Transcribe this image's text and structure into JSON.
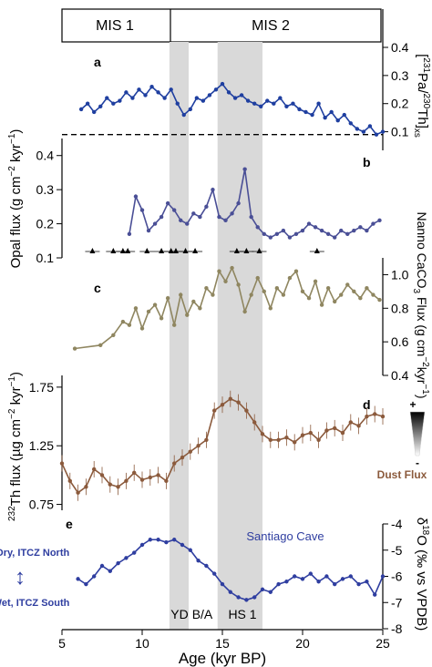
{
  "mis_bar": {
    "left_label": "MIS 1",
    "right_label": "MIS 2"
  },
  "shaded_bands": [
    {
      "name": "YD",
      "from": 11.7,
      "to": 12.9
    },
    {
      "name": "HS 1",
      "from": 14.7,
      "to": 17.5
    }
  ],
  "event_labels": [
    "YD",
    "B/A",
    "HS 1"
  ],
  "x_axis": {
    "label": "Age (kyr BP)",
    "range": [
      5,
      25
    ],
    "ticks": [
      "5",
      "10",
      "15",
      "20",
      "25"
    ]
  },
  "chart_data": [
    {
      "panel": "a",
      "type": "line",
      "color": "#1f3fa0",
      "ylabel": "[231Pa/230Th]xs",
      "ylim": [
        0.05,
        0.4
      ],
      "yticks": [
        "0.1",
        "0.2",
        "0.3",
        "0.4"
      ],
      "reference_line": 0.09,
      "x": [
        6.2,
        6.6,
        7.0,
        7.4,
        7.8,
        8.2,
        8.6,
        9.0,
        9.4,
        9.8,
        10.2,
        10.6,
        11.0,
        11.4,
        11.8,
        12.2,
        12.6,
        13.0,
        13.4,
        13.8,
        14.2,
        14.6,
        15.0,
        15.4,
        15.8,
        16.2,
        16.6,
        17.0,
        17.4,
        17.8,
        18.2,
        18.6,
        19.0,
        19.4,
        19.8,
        20.2,
        20.6,
        21.0,
        21.4,
        21.8,
        22.2,
        22.6,
        23.0,
        23.4,
        23.8,
        24.2,
        24.6,
        25.0
      ],
      "y": [
        0.18,
        0.2,
        0.17,
        0.19,
        0.22,
        0.2,
        0.21,
        0.24,
        0.22,
        0.25,
        0.23,
        0.26,
        0.24,
        0.22,
        0.25,
        0.2,
        0.16,
        0.18,
        0.22,
        0.21,
        0.23,
        0.25,
        0.27,
        0.24,
        0.22,
        0.23,
        0.21,
        0.2,
        0.19,
        0.21,
        0.2,
        0.22,
        0.19,
        0.2,
        0.18,
        0.17,
        0.16,
        0.2,
        0.15,
        0.17,
        0.14,
        0.16,
        0.13,
        0.11,
        0.1,
        0.12,
        0.09,
        0.1
      ]
    },
    {
      "panel": "b",
      "type": "line",
      "color": "#4a4f96",
      "ylabel": "Opal flux (g cm⁻² kyr⁻¹)",
      "ylim": [
        0.1,
        0.45
      ],
      "yticks": [
        "0.1",
        "0.2",
        "0.3",
        "0.4"
      ],
      "x": [
        9.2,
        9.6,
        10.0,
        10.4,
        10.8,
        11.2,
        11.6,
        12.0,
        12.4,
        12.8,
        13.2,
        13.6,
        14.0,
        14.4,
        14.8,
        15.2,
        15.6,
        16.0,
        16.4,
        16.8,
        17.2,
        17.6,
        18.0,
        18.4,
        18.8,
        19.2,
        19.6,
        20.0,
        20.4,
        20.8,
        21.2,
        21.6,
        22.0,
        22.4,
        22.8,
        23.2,
        23.6,
        24.0,
        24.4,
        24.8
      ],
      "y": [
        0.17,
        0.28,
        0.24,
        0.18,
        0.2,
        0.22,
        0.26,
        0.24,
        0.21,
        0.2,
        0.23,
        0.22,
        0.25,
        0.3,
        0.22,
        0.21,
        0.23,
        0.26,
        0.36,
        0.22,
        0.19,
        0.17,
        0.16,
        0.17,
        0.18,
        0.16,
        0.17,
        0.18,
        0.2,
        0.19,
        0.18,
        0.17,
        0.16,
        0.18,
        0.17,
        0.18,
        0.19,
        0.18,
        0.2,
        0.21
      ]
    },
    {
      "panel": "c",
      "type": "line",
      "color": "#8f8660",
      "ylabel": "Nanno CaCO3 Flux (g cm⁻² kyr⁻¹)",
      "ylim": [
        0.4,
        1.1
      ],
      "yticks": [
        "0.4",
        "0.6",
        "0.8",
        "1.0"
      ],
      "x": [
        5.8,
        7.4,
        8.2,
        8.8,
        9.2,
        9.6,
        10.0,
        10.4,
        10.8,
        11.2,
        11.6,
        12.0,
        12.4,
        12.8,
        13.2,
        13.6,
        14.0,
        14.4,
        14.8,
        15.2,
        15.6,
        16.0,
        16.4,
        16.8,
        17.2,
        17.6,
        18.0,
        18.4,
        18.8,
        19.2,
        19.6,
        20.0,
        20.4,
        20.8,
        21.2,
        21.6,
        22.0,
        22.4,
        22.8,
        23.2,
        23.6,
        24.0,
        24.4,
        24.8
      ],
      "y": [
        0.56,
        0.58,
        0.64,
        0.72,
        0.7,
        0.8,
        0.68,
        0.78,
        0.82,
        0.74,
        0.86,
        0.7,
        0.88,
        0.76,
        0.84,
        0.8,
        0.92,
        0.88,
        1.02,
        0.96,
        1.04,
        0.94,
        0.78,
        0.88,
        0.98,
        0.9,
        0.8,
        0.92,
        0.88,
        0.98,
        1.02,
        0.9,
        0.86,
        0.96,
        0.82,
        0.92,
        0.84,
        0.88,
        0.94,
        0.9,
        0.86,
        0.92,
        0.88,
        0.85
      ]
    },
    {
      "panel": "d",
      "type": "line",
      "color": "#8b5a3c",
      "ylabel": "232Th flux (µg cm⁻² kyr⁻¹)",
      "ylim": [
        0.7,
        1.85
      ],
      "yticks": [
        "0.75",
        "1.25",
        "1.75"
      ],
      "annotation": "Dust Flux",
      "x": [
        5.0,
        5.5,
        6.0,
        6.5,
        7.0,
        7.5,
        8.0,
        8.5,
        9.0,
        9.5,
        10.0,
        10.5,
        11.0,
        11.5,
        12.0,
        12.5,
        13.0,
        13.5,
        14.0,
        14.5,
        15.0,
        15.5,
        16.0,
        16.5,
        17.0,
        17.5,
        18.0,
        18.5,
        19.0,
        19.5,
        20.0,
        20.5,
        21.0,
        21.5,
        22.0,
        22.5,
        23.0,
        23.5,
        24.0,
        24.5,
        25.0
      ],
      "y": [
        1.1,
        0.95,
        0.85,
        0.9,
        1.05,
        1.0,
        0.92,
        0.9,
        0.95,
        1.02,
        0.96,
        0.98,
        1.0,
        0.95,
        1.1,
        1.15,
        1.2,
        1.25,
        1.3,
        1.55,
        1.6,
        1.65,
        1.62,
        1.55,
        1.45,
        1.35,
        1.3,
        1.3,
        1.32,
        1.28,
        1.34,
        1.36,
        1.3,
        1.38,
        1.4,
        1.36,
        1.45,
        1.42,
        1.5,
        1.52,
        1.5
      ]
    },
    {
      "panel": "e",
      "type": "line",
      "color": "#2f3ea0",
      "ylabel": "δ18O (‰ vs VPDB)",
      "ylim": [
        -8,
        -4
      ],
      "yticks": [
        "-4",
        "-5",
        "-6",
        "-7",
        "-8"
      ],
      "series_label": "Santiago Cave",
      "left_top_label": "Dry, ITCZ North",
      "left_bottom_label": "Wet, ITCZ South",
      "x": [
        6.0,
        6.5,
        7.0,
        7.5,
        8.0,
        8.5,
        9.0,
        9.5,
        10.0,
        10.5,
        11.0,
        11.5,
        12.0,
        12.5,
        13.0,
        13.5,
        14.0,
        14.5,
        15.0,
        15.5,
        16.0,
        16.5,
        17.0,
        17.5,
        18.0,
        18.5,
        19.0,
        19.5,
        20.0,
        20.5,
        21.0,
        21.5,
        22.0,
        22.5,
        23.0,
        23.5,
        24.0,
        24.5,
        25.0
      ],
      "y": [
        -6.1,
        -6.3,
        -6.0,
        -5.6,
        -5.8,
        -5.5,
        -5.3,
        -5.1,
        -4.8,
        -4.6,
        -4.6,
        -4.7,
        -4.6,
        -4.8,
        -5.0,
        -5.4,
        -5.6,
        -5.9,
        -6.3,
        -6.6,
        -6.8,
        -6.9,
        -6.8,
        -6.5,
        -6.6,
        -6.3,
        -6.2,
        -6.0,
        -6.1,
        -5.9,
        -6.2,
        -6.0,
        -6.3,
        -6.1,
        -6.0,
        -6.3,
        -6.2,
        -6.7,
        -6.0
      ]
    }
  ],
  "panel_labels": [
    "a",
    "b",
    "c",
    "d",
    "e"
  ],
  "ylabel_texts": {
    "a_top": "[",
    "a_sup1": "231",
    "a_mid": "Pa/",
    "a_sup2": "230",
    "a_end": "Th]",
    "a_sub": "xs",
    "b": "Opal flux (g cm",
    "b_exp1": "−2",
    "b_mid": " kyr",
    "b_exp2": "−1",
    "b_end": ")",
    "c1": "Nanno CaCO",
    "c1_sub": "3",
    "c1_end": " Flux (g cm",
    "c1_exp1": "−2",
    "c1_mid": "kyr",
    "c1_exp2": "−1",
    "c1_close": ")",
    "d_sup": "232",
    "d": "Th flux (µg cm",
    "d_exp1": "−2",
    "d_mid": " kyr",
    "d_exp2": "−1",
    "d_end": ")",
    "e_sym": "δ",
    "e_sup": "18",
    "e": "O (‰ vs VPDB)"
  },
  "dust_gradient": {
    "plus": "+",
    "minus": "-"
  },
  "arrow_glyph": "↕"
}
